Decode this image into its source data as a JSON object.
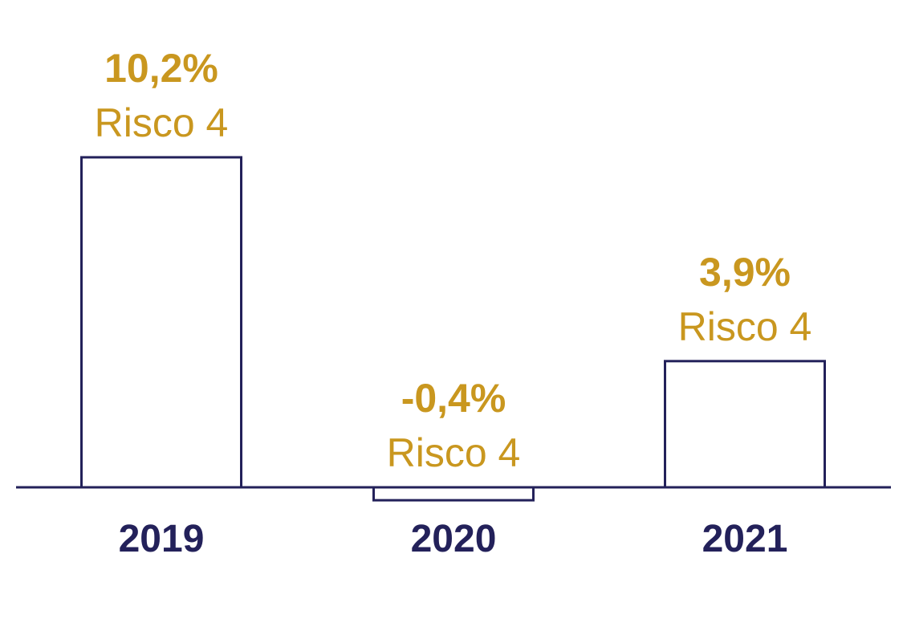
{
  "chart_data": {
    "type": "bar",
    "categories": [
      "2019",
      "2020",
      "2021"
    ],
    "values": [
      10.2,
      -0.4,
      3.9
    ],
    "value_labels": [
      "10,2%",
      "-0,4%",
      "3,9%"
    ],
    "risk_labels": [
      "Risco 4",
      "Risco 4",
      "Risco 4"
    ],
    "title": "",
    "xlabel": "",
    "ylabel": "",
    "grid": false,
    "legend": "none"
  },
  "colors": {
    "bar_outline": "#23215a",
    "axis": "#23215a",
    "value_text": "#c9971f",
    "category_text": "#23215a"
  }
}
